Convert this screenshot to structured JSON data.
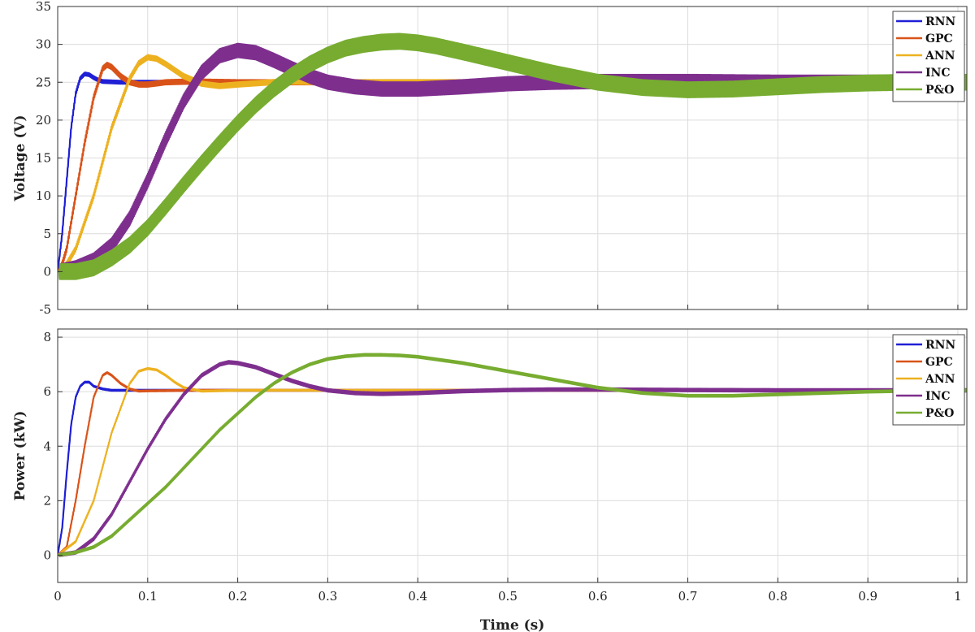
{
  "chart_data": [
    {
      "type": "line",
      "id": "voltage",
      "xlabel": "",
      "ylabel": "Voltage (V)",
      "xlim": [
        0,
        1.01
      ],
      "ylim": [
        -5,
        35
      ],
      "xticks": [
        0,
        0.1,
        0.2,
        0.3,
        0.4,
        0.5,
        0.6,
        0.7,
        0.8,
        0.9,
        1
      ],
      "xticklabels": [
        "0",
        "0.1",
        "0.2",
        "0.3",
        "0.4",
        "0.5",
        "0.6",
        "0.7",
        "0.8",
        "0.9",
        "1"
      ],
      "show_xticklabels": false,
      "yticks": [
        -5,
        0,
        5,
        10,
        15,
        20,
        25,
        30,
        35
      ],
      "yticklabels": [
        "-5",
        "0",
        "5",
        "10",
        "15",
        "20",
        "25",
        "30",
        "35"
      ],
      "grid": true,
      "legend_position": "top-right",
      "series": [
        {
          "name": "RNN",
          "color": "#1f1fd6",
          "width": 2.2,
          "ripple": 0.2,
          "x": [
            0,
            0.005,
            0.01,
            0.015,
            0.02,
            0.025,
            0.03,
            0.035,
            0.04,
            0.045,
            0.05,
            0.07,
            0.1,
            0.2,
            0.5,
            1.0
          ],
          "y": [
            0,
            5,
            12,
            19,
            23.5,
            25.5,
            26.1,
            26,
            25.6,
            25.3,
            25.1,
            25,
            25,
            25,
            25,
            25
          ]
        },
        {
          "name": "GPC",
          "color": "#d95319",
          "width": 2.2,
          "ripple": 0.3,
          "x": [
            0,
            0.005,
            0.01,
            0.02,
            0.03,
            0.04,
            0.05,
            0.055,
            0.06,
            0.07,
            0.08,
            0.09,
            0.1,
            0.12,
            0.15,
            0.2,
            0.5,
            1.0
          ],
          "y": [
            0,
            1,
            3,
            10,
            17,
            23,
            26.8,
            27.3,
            27,
            25.8,
            25,
            24.7,
            24.7,
            25,
            25.1,
            25,
            25,
            25
          ]
        },
        {
          "name": "ANN",
          "color": "#edb120",
          "width": 2.2,
          "ripple": 0.3,
          "x": [
            0,
            0.01,
            0.02,
            0.04,
            0.06,
            0.08,
            0.09,
            0.1,
            0.11,
            0.12,
            0.14,
            0.16,
            0.18,
            0.2,
            0.25,
            0.3,
            0.5,
            1.0
          ],
          "y": [
            0,
            1,
            3,
            10,
            19,
            25.5,
            27.5,
            28.3,
            28.1,
            27.4,
            25.8,
            24.8,
            24.5,
            24.7,
            25.1,
            25,
            25,
            25
          ]
        },
        {
          "name": "INC",
          "color": "#7e2f8e",
          "width": 2.2,
          "ripple": 0.9,
          "x": [
            0,
            0.02,
            0.04,
            0.06,
            0.08,
            0.1,
            0.12,
            0.14,
            0.16,
            0.18,
            0.2,
            0.22,
            0.24,
            0.26,
            0.28,
            0.3,
            0.33,
            0.36,
            0.4,
            0.45,
            0.5,
            0.55,
            0.6,
            0.7,
            0.8,
            0.9,
            1.0
          ],
          "y": [
            0,
            0.5,
            1.5,
            3.5,
            7,
            12,
            17.5,
            22.5,
            26.3,
            28.5,
            29.2,
            28.9,
            27.9,
            26.8,
            25.8,
            25,
            24.4,
            24.1,
            24.1,
            24.4,
            24.8,
            25,
            25.1,
            25.1,
            25,
            25,
            25
          ]
        },
        {
          "name": "P&O",
          "color": "#77ac30",
          "width": 2.2,
          "ripple": 1.0,
          "x": [
            0,
            0.02,
            0.04,
            0.06,
            0.08,
            0.1,
            0.12,
            0.14,
            0.16,
            0.18,
            0.2,
            0.22,
            0.24,
            0.26,
            0.28,
            0.3,
            0.32,
            0.34,
            0.36,
            0.38,
            0.4,
            0.42,
            0.45,
            0.5,
            0.55,
            0.6,
            0.65,
            0.7,
            0.75,
            0.8,
            0.85,
            0.9,
            0.95,
            1.0
          ],
          "y": [
            0,
            0,
            0.5,
            1.8,
            3.5,
            5.8,
            8.6,
            11.5,
            14.3,
            17,
            19.6,
            22,
            24.1,
            25.9,
            27.4,
            28.6,
            29.5,
            30,
            30.3,
            30.4,
            30.2,
            29.8,
            29,
            27.6,
            26.2,
            25,
            24.3,
            24,
            24.1,
            24.4,
            24.7,
            24.9,
            25,
            25
          ]
        }
      ]
    },
    {
      "type": "line",
      "id": "power",
      "xlabel": "Time (s)",
      "ylabel": "Power (kW)",
      "xlim": [
        0,
        1.01
      ],
      "ylim": [
        -1,
        8.3
      ],
      "xticks": [
        0,
        0.1,
        0.2,
        0.3,
        0.4,
        0.5,
        0.6,
        0.7,
        0.8,
        0.9,
        1
      ],
      "xticklabels": [
        "0",
        "0.1",
        "0.2",
        "0.3",
        "0.4",
        "0.5",
        "0.6",
        "0.7",
        "0.8",
        "0.9",
        "1"
      ],
      "show_xticklabels": true,
      "yticks": [
        0,
        2,
        4,
        6,
        8
      ],
      "yticklabels": [
        "0",
        "2",
        "4",
        "6",
        "8"
      ],
      "grid": true,
      "legend_position": "top-right",
      "series": [
        {
          "name": "RNN",
          "color": "#1f1fd6",
          "width": 2.2,
          "ripple": 0.02,
          "x": [
            0,
            0.005,
            0.01,
            0.015,
            0.02,
            0.025,
            0.03,
            0.035,
            0.04,
            0.05,
            0.06,
            0.1,
            0.5,
            1.0
          ],
          "y": [
            0,
            1,
            3,
            4.8,
            5.8,
            6.2,
            6.35,
            6.35,
            6.2,
            6.1,
            6.05,
            6.05,
            6.05,
            6.05
          ]
        },
        {
          "name": "GPC",
          "color": "#d95319",
          "width": 2.2,
          "ripple": 0.02,
          "x": [
            0,
            0.01,
            0.02,
            0.03,
            0.04,
            0.05,
            0.055,
            0.06,
            0.07,
            0.08,
            0.09,
            0.1,
            0.15,
            0.5,
            1.0
          ],
          "y": [
            0,
            0.3,
            2,
            4,
            5.8,
            6.6,
            6.7,
            6.6,
            6.3,
            6.1,
            6.02,
            6.03,
            6.05,
            6.05,
            6.05
          ]
        },
        {
          "name": "ANN",
          "color": "#edb120",
          "width": 2.2,
          "ripple": 0.02,
          "x": [
            0,
            0.02,
            0.04,
            0.06,
            0.08,
            0.09,
            0.1,
            0.11,
            0.12,
            0.13,
            0.14,
            0.16,
            0.2,
            0.5,
            1.0
          ],
          "y": [
            0,
            0.5,
            2,
            4.5,
            6.3,
            6.75,
            6.85,
            6.8,
            6.6,
            6.35,
            6.15,
            6.02,
            6.05,
            6.05,
            6.05
          ]
        },
        {
          "name": "INC",
          "color": "#7e2f8e",
          "width": 2.2,
          "ripple": 0.05,
          "x": [
            0,
            0.02,
            0.04,
            0.06,
            0.08,
            0.1,
            0.12,
            0.14,
            0.16,
            0.18,
            0.19,
            0.2,
            0.22,
            0.24,
            0.26,
            0.28,
            0.3,
            0.33,
            0.36,
            0.4,
            0.45,
            0.5,
            0.55,
            0.6,
            0.7,
            0.8,
            0.9,
            1.0
          ],
          "y": [
            0,
            0.1,
            0.6,
            1.5,
            2.7,
            3.9,
            5,
            5.9,
            6.6,
            7,
            7.08,
            7.05,
            6.9,
            6.65,
            6.4,
            6.2,
            6.05,
            5.95,
            5.92,
            5.95,
            6.02,
            6.06,
            6.08,
            6.08,
            6.06,
            6.05,
            6.05,
            6.05
          ]
        },
        {
          "name": "P&O",
          "color": "#77ac30",
          "width": 2.6,
          "ripple": 0.03,
          "x": [
            0,
            0.02,
            0.04,
            0.06,
            0.08,
            0.1,
            0.12,
            0.14,
            0.16,
            0.18,
            0.2,
            0.22,
            0.24,
            0.26,
            0.28,
            0.3,
            0.32,
            0.34,
            0.36,
            0.38,
            0.4,
            0.45,
            0.5,
            0.55,
            0.6,
            0.65,
            0.7,
            0.75,
            0.8,
            0.85,
            0.9,
            0.95,
            1.0
          ],
          "y": [
            0,
            0.1,
            0.3,
            0.7,
            1.3,
            1.9,
            2.5,
            3.2,
            3.9,
            4.6,
            5.2,
            5.8,
            6.3,
            6.7,
            7,
            7.2,
            7.3,
            7.35,
            7.35,
            7.33,
            7.28,
            7.05,
            6.75,
            6.45,
            6.15,
            5.95,
            5.85,
            5.85,
            5.9,
            5.95,
            6.0,
            6.03,
            6.05
          ]
        }
      ]
    }
  ]
}
